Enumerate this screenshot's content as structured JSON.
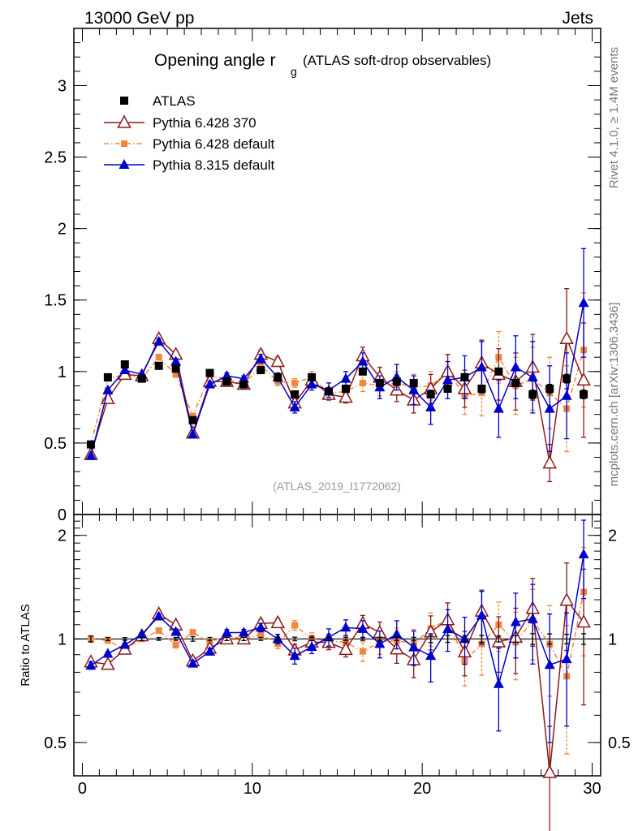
{
  "header": {
    "energy_label": "13000 GeV pp",
    "process_label": "Jets"
  },
  "side": {
    "rivet_label": "Rivet 4.1.0, ≥ 1.4M events",
    "mcplots_label": "mcplots.cern.ch [arXiv:1306.3436]"
  },
  "chart_data": {
    "type": "scatter",
    "title": "Opening angle r",
    "title_subscript": "g",
    "subtitle": "(ATLAS soft-drop observables)",
    "analysis_label": "(ATLAS_2019_I1772062)",
    "xlabel": "",
    "ylabel_main": "",
    "ylabel_ratio": "Ratio to ATLAS",
    "xlim": [
      -0.5,
      30.5
    ],
    "ylim_main": [
      0,
      3.4
    ],
    "ylim_ratio": [
      0.4,
      2.3
    ],
    "x_ticks": [
      0,
      10,
      20,
      30
    ],
    "x_tick_labels": [
      "0",
      "10",
      "20",
      "30"
    ],
    "y_ticks_main": [
      0,
      0.5,
      1,
      1.5,
      2,
      2.5,
      3
    ],
    "y_tick_labels_main": [
      "0",
      "0.5",
      "1",
      "1.5",
      "2",
      "2.5",
      "3"
    ],
    "y_ticks_ratio": [
      0.5,
      1,
      2
    ],
    "y_tick_labels_ratio": [
      "0.5",
      "1",
      "2"
    ],
    "legend": [
      "ATLAS",
      "Pythia 6.428 370",
      "Pythia 6.428 default",
      "Pythia 8.315 default"
    ],
    "x": [
      0.5,
      1.5,
      2.5,
      3.5,
      4.5,
      5.5,
      6.5,
      7.5,
      8.5,
      9.5,
      10.5,
      11.5,
      12.5,
      13.5,
      14.5,
      15.5,
      16.5,
      17.5,
      18.5,
      19.5,
      20.5,
      21.5,
      22.5,
      23.5,
      24.5,
      25.5,
      26.5,
      27.5,
      28.5,
      29.5
    ],
    "series": [
      {
        "name": "ATLAS",
        "color": "#000000",
        "marker": "square",
        "values": [
          0.49,
          0.96,
          1.05,
          0.95,
          1.04,
          1.02,
          0.66,
          0.99,
          0.93,
          0.91,
          1.01,
          0.96,
          0.84,
          0.96,
          0.86,
          0.88,
          1.0,
          0.92,
          0.93,
          0.92,
          0.84,
          0.88,
          0.96,
          0.88,
          1.0,
          0.92,
          0.84,
          0.88,
          0.95,
          0.84
        ],
        "errors": [
          0.01,
          0.01,
          0.01,
          0.01,
          0.01,
          0.01,
          0.01,
          0.01,
          0.01,
          0.01,
          0.01,
          0.01,
          0.01,
          0.01,
          0.01,
          0.01,
          0.01,
          0.01,
          0.01,
          0.01,
          0.02,
          0.02,
          0.02,
          0.02,
          0.02,
          0.02,
          0.03,
          0.03,
          0.03,
          0.03
        ]
      },
      {
        "name": "Pythia 6.428 370",
        "color": "#8b1a1a",
        "marker": "triangle-open",
        "line": "solid",
        "values": [
          0.42,
          0.81,
          0.98,
          0.97,
          1.23,
          1.12,
          0.57,
          0.93,
          0.93,
          0.91,
          1.12,
          1.07,
          0.78,
          0.94,
          0.84,
          0.82,
          1.11,
          0.96,
          0.87,
          0.8,
          0.88,
          1.0,
          0.88,
          1.06,
          0.98,
          0.93,
          1.03,
          0.36,
          1.23,
          0.94
        ],
        "errors": [
          0.01,
          0.01,
          0.01,
          0.01,
          0.02,
          0.02,
          0.01,
          0.02,
          0.02,
          0.02,
          0.03,
          0.03,
          0.03,
          0.04,
          0.04,
          0.04,
          0.06,
          0.07,
          0.08,
          0.09,
          0.1,
          0.12,
          0.13,
          0.16,
          0.18,
          0.2,
          0.23,
          0.13,
          0.35,
          0.4
        ]
      },
      {
        "name": "Pythia 6.428 default",
        "color": "#f2863a",
        "marker": "square-small",
        "line": "dashdot",
        "values": [
          0.49,
          0.95,
          0.98,
          0.95,
          1.1,
          0.98,
          0.69,
          0.97,
          0.95,
          0.91,
          1.04,
          0.93,
          0.92,
          0.96,
          0.85,
          0.86,
          0.92,
          0.9,
          0.92,
          0.89,
          0.9,
          1.0,
          0.83,
          0.85,
          1.1,
          0.9,
          0.95,
          0.85,
          0.74,
          1.15
        ],
        "errors": [
          0.01,
          0.01,
          0.01,
          0.01,
          0.02,
          0.02,
          0.01,
          0.02,
          0.02,
          0.02,
          0.03,
          0.03,
          0.03,
          0.04,
          0.04,
          0.04,
          0.06,
          0.07,
          0.08,
          0.09,
          0.1,
          0.12,
          0.13,
          0.16,
          0.18,
          0.2,
          0.22,
          0.25,
          0.3,
          0.4
        ]
      },
      {
        "name": "Pythia 8.315 default",
        "color": "#0000cc",
        "marker": "triangle",
        "line": "solid",
        "values": [
          0.41,
          0.87,
          1.01,
          0.98,
          1.21,
          1.07,
          0.56,
          0.91,
          0.97,
          0.95,
          1.09,
          0.96,
          0.75,
          0.91,
          0.87,
          0.95,
          1.07,
          0.89,
          0.96,
          0.87,
          0.75,
          0.94,
          0.96,
          1.03,
          0.74,
          1.03,
          0.96,
          0.74,
          0.83,
          1.48
        ],
        "errors": [
          0.01,
          0.01,
          0.01,
          0.01,
          0.02,
          0.02,
          0.01,
          0.02,
          0.02,
          0.02,
          0.03,
          0.03,
          0.04,
          0.04,
          0.05,
          0.05,
          0.06,
          0.08,
          0.09,
          0.1,
          0.12,
          0.13,
          0.15,
          0.18,
          0.2,
          0.22,
          0.25,
          0.3,
          0.3,
          0.38
        ]
      }
    ]
  }
}
